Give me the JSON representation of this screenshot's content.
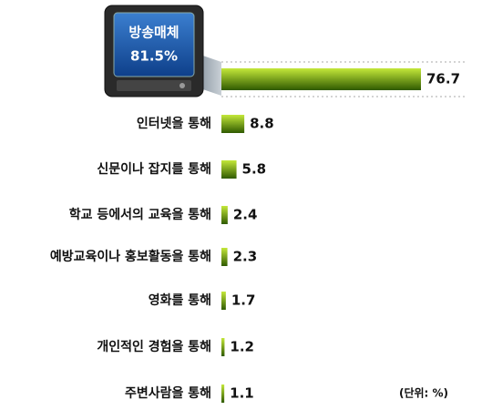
{
  "chart_data": {
    "type": "bar",
    "categories": [
      "방송매체",
      "인터넷을 통해",
      "신문이나 잡지를 통해",
      "학교 등에서의 교육을 통해",
      "예방교육이나 홍보활동을 통해",
      "영화를 통해",
      "개인적인 경험을 통해",
      "주변사람을 통해"
    ],
    "values": [
      76.7,
      8.8,
      5.8,
      2.4,
      2.3,
      1.7,
      1.2,
      1.1
    ],
    "annotation": "81.5%",
    "unit_note": "(단위: %)",
    "gradient": [
      "#c4e83a",
      "#2f5a00"
    ]
  }
}
